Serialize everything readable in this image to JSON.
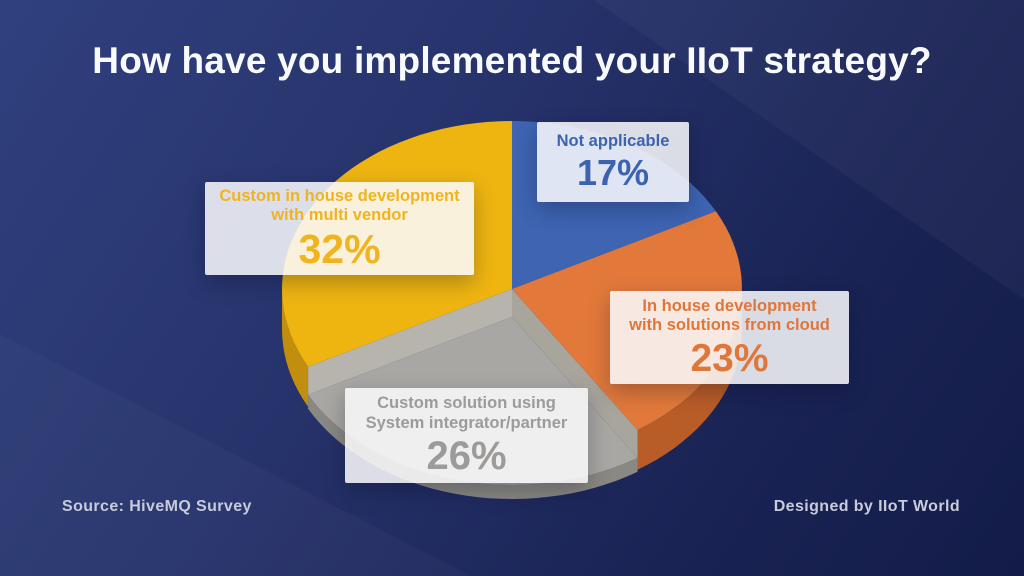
{
  "title": "How have you implemented your IIoT strategy?",
  "footer": {
    "source": "Source: HiveMQ Survey",
    "credit": "Designed by IIoT World"
  },
  "labels": {
    "blue": {
      "line1": "Not applicable",
      "pct": "17%"
    },
    "yellow": {
      "line1": "Custom in house development",
      "line2": "with multi vendor",
      "pct": "32%"
    },
    "orange": {
      "line1": "In house development",
      "line2": "with solutions from cloud",
      "pct": "23%"
    },
    "gray": {
      "line1": "Custom solution using",
      "line2": "System integrator/partner",
      "pct": "26%"
    }
  },
  "colors": {
    "background_top": "#30407e",
    "background_bottom": "#131c48",
    "title_text": "#f8fafd",
    "footer_text": "#c7cbdb",
    "card_bg": "rgba(250,250,253,0.86)",
    "blue_text": "#3c63b0",
    "yellow_text": "#f0b41e",
    "orange_text": "#e0773a",
    "gray_text": "#9d9b99",
    "cut_face_light": "#b7b4ad",
    "cut_face_dark": "#a8a59d"
  },
  "chart_data": {
    "type": "pie",
    "title": "How have you implemented your IIoT strategy?",
    "unit": "%",
    "start_angle_deg": 0,
    "direction": "clockwise-from-top",
    "style": "3d-ellipse, gray slice sunken/offset",
    "legend_position": "floating cards over slices",
    "slices": [
      {
        "label": "Not applicable",
        "value": 17,
        "color": "#3e64b2",
        "side": "#2d4a87"
      },
      {
        "label": "In house development with solutions from cloud",
        "value": 23,
        "color": "#e2793b",
        "side": "#b95d28"
      },
      {
        "label": "Custom solution using System integrator/partner",
        "value": 26,
        "color": "#a9a7a3",
        "side": "#8a8882",
        "sunken": true
      },
      {
        "label": "Custom in house development with multi vendor",
        "value": 32,
        "color": "#eeb511",
        "side": "#c18f0d"
      }
    ]
  }
}
